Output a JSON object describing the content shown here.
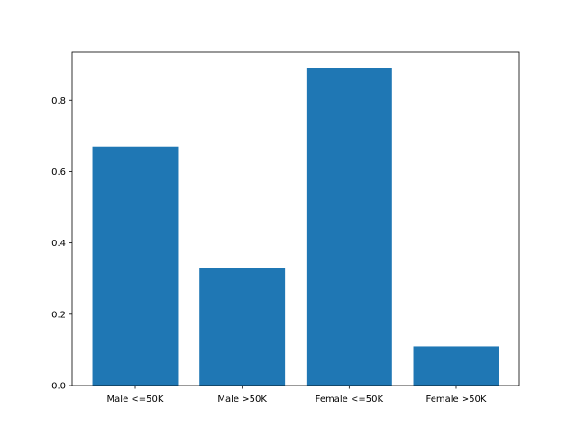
{
  "chart_data": {
    "type": "bar",
    "title": "",
    "xlabel": "",
    "ylabel": "",
    "categories": [
      "Male <=50K",
      "Male >50K",
      "Female <=50K",
      "Female >50K"
    ],
    "values": [
      0.67,
      0.33,
      0.89,
      0.11
    ],
    "ylim": [
      0,
      0.9345
    ],
    "yticks": [
      0.0,
      0.2,
      0.4,
      0.6,
      0.8
    ],
    "ytick_labels": [
      "0.0",
      "0.2",
      "0.4",
      "0.6",
      "0.8"
    ],
    "bar_color": "#1f77b4",
    "grid": false,
    "legend": "none"
  }
}
